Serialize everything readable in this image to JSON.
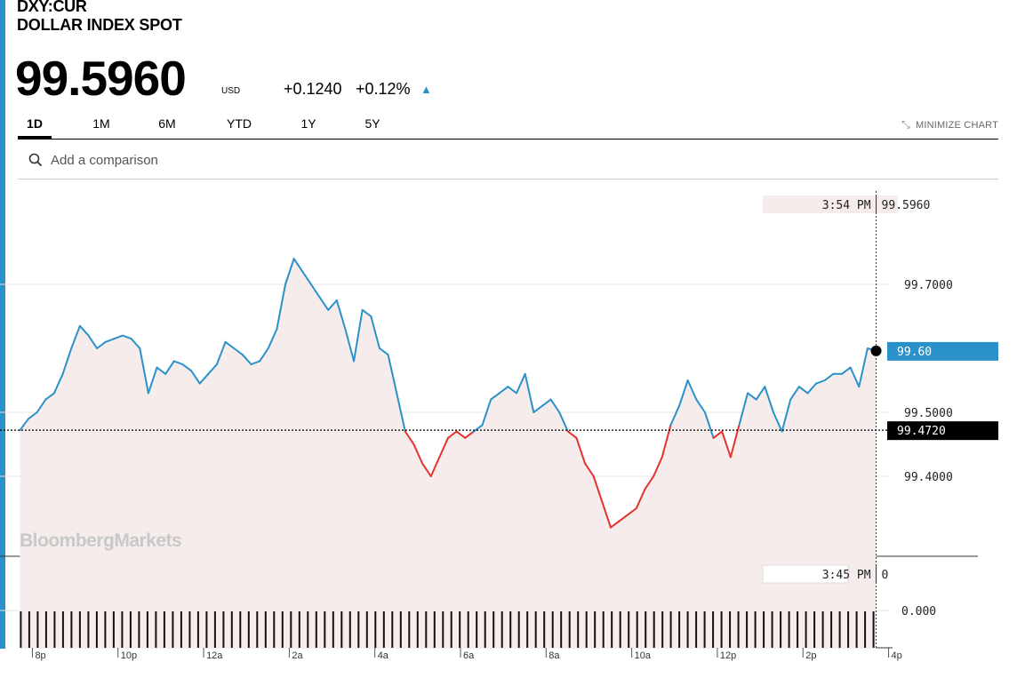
{
  "ticker": "DXY:CUR",
  "name": "DOLLAR INDEX SPOT",
  "price": "99.5960",
  "currency": "USD",
  "change": "+0.1240",
  "change_pct": "+0.12%",
  "tabs": [
    {
      "label": "1D",
      "active": true
    },
    {
      "label": "1M",
      "active": false
    },
    {
      "label": "6M",
      "active": false
    },
    {
      "label": "YTD",
      "active": false
    },
    {
      "label": "1Y",
      "active": false
    },
    {
      "label": "5Y",
      "active": false
    }
  ],
  "minimize_label": "MINIMIZE CHART",
  "search_placeholder": "Add a comparison",
  "watermark": "BloombergMarkets",
  "colors": {
    "up": "#2a92c9",
    "down": "#e5322e",
    "fill": "#f6ecec",
    "accent": "#2a92c9"
  },
  "chart_data": {
    "type": "line",
    "title": "DXY:CUR",
    "previous_close": 99.472,
    "previous_close_label": "99.4720",
    "last_value_label": "99.60",
    "crosshair_time": "3:54 PM",
    "crosshair_value": "99.5960",
    "y_ticks": [
      "99.7000",
      "99.5000",
      "99.4000"
    ],
    "ylim": [
      99.28,
      99.82
    ],
    "x_ticks": [
      "8p",
      "10p",
      "12a",
      "2a",
      "4a",
      "6a",
      "8a",
      "10a",
      "12p",
      "2p",
      "4p"
    ],
    "x_tick_hours": [
      0,
      2,
      4,
      6,
      8,
      10,
      12,
      14,
      16,
      18,
      20
    ],
    "x_range_hours": [
      -0.3,
      20.3
    ],
    "points": [
      [
        0,
        99.472
      ],
      [
        0.2,
        99.49
      ],
      [
        0.4,
        99.5
      ],
      [
        0.6,
        99.52
      ],
      [
        0.8,
        99.53
      ],
      [
        1.0,
        99.56
      ],
      [
        1.2,
        99.6
      ],
      [
        1.4,
        99.635
      ],
      [
        1.6,
        99.62
      ],
      [
        1.8,
        99.6
      ],
      [
        2.0,
        99.61
      ],
      [
        2.2,
        99.615
      ],
      [
        2.4,
        99.62
      ],
      [
        2.6,
        99.615
      ],
      [
        2.8,
        99.6
      ],
      [
        3.0,
        99.53
      ],
      [
        3.2,
        99.57
      ],
      [
        3.4,
        99.56
      ],
      [
        3.6,
        99.58
      ],
      [
        3.8,
        99.575
      ],
      [
        4.0,
        99.565
      ],
      [
        4.2,
        99.545
      ],
      [
        4.4,
        99.56
      ],
      [
        4.6,
        99.575
      ],
      [
        4.8,
        99.61
      ],
      [
        5.0,
        99.6
      ],
      [
        5.2,
        99.59
      ],
      [
        5.4,
        99.575
      ],
      [
        5.6,
        99.58
      ],
      [
        5.8,
        99.6
      ],
      [
        6.0,
        99.63
      ],
      [
        6.2,
        99.7
      ],
      [
        6.4,
        99.74
      ],
      [
        6.6,
        99.72
      ],
      [
        6.8,
        99.7
      ],
      [
        7.0,
        99.68
      ],
      [
        7.2,
        99.66
      ],
      [
        7.4,
        99.675
      ],
      [
        7.6,
        99.63
      ],
      [
        7.8,
        99.58
      ],
      [
        8.0,
        99.66
      ],
      [
        8.2,
        99.65
      ],
      [
        8.4,
        99.6
      ],
      [
        8.6,
        99.59
      ],
      [
        8.8,
        99.53
      ],
      [
        9.0,
        99.47
      ],
      [
        9.2,
        99.45
      ],
      [
        9.4,
        99.42
      ],
      [
        9.6,
        99.4
      ],
      [
        9.8,
        99.43
      ],
      [
        10.0,
        99.46
      ],
      [
        10.2,
        99.47
      ],
      [
        10.4,
        99.46
      ],
      [
        10.6,
        99.47
      ],
      [
        10.8,
        99.48
      ],
      [
        11.0,
        99.52
      ],
      [
        11.2,
        99.53
      ],
      [
        11.4,
        99.54
      ],
      [
        11.6,
        99.53
      ],
      [
        11.8,
        99.56
      ],
      [
        12.0,
        99.5
      ],
      [
        12.2,
        99.51
      ],
      [
        12.4,
        99.52
      ],
      [
        12.6,
        99.5
      ],
      [
        12.8,
        99.47
      ],
      [
        13.0,
        99.46
      ],
      [
        13.2,
        99.42
      ],
      [
        13.4,
        99.4
      ],
      [
        13.6,
        99.36
      ],
      [
        13.8,
        99.32
      ],
      [
        14.0,
        99.33
      ],
      [
        14.2,
        99.34
      ],
      [
        14.4,
        99.35
      ],
      [
        14.6,
        99.38
      ],
      [
        14.8,
        99.4
      ],
      [
        15.0,
        99.43
      ],
      [
        15.2,
        99.48
      ],
      [
        15.4,
        99.51
      ],
      [
        15.6,
        99.55
      ],
      [
        15.8,
        99.52
      ],
      [
        16.0,
        99.5
      ],
      [
        16.2,
        99.46
      ],
      [
        16.4,
        99.47
      ],
      [
        16.6,
        99.43
      ],
      [
        16.8,
        99.48
      ],
      [
        17.0,
        99.53
      ],
      [
        17.2,
        99.52
      ],
      [
        17.4,
        99.54
      ],
      [
        17.6,
        99.5
      ],
      [
        17.8,
        99.47
      ],
      [
        18.0,
        99.52
      ],
      [
        18.2,
        99.54
      ],
      [
        18.4,
        99.53
      ],
      [
        18.6,
        99.545
      ],
      [
        18.8,
        99.55
      ],
      [
        19.0,
        99.56
      ],
      [
        19.2,
        99.56
      ],
      [
        19.4,
        99.57
      ],
      [
        19.6,
        99.54
      ],
      [
        19.8,
        99.6
      ],
      [
        20.0,
        99.596
      ]
    ],
    "volume_label_time": "3:45 PM",
    "volume_label_value": "0",
    "volume_y_tick": "0.000",
    "volume_bar_count": 102
  }
}
